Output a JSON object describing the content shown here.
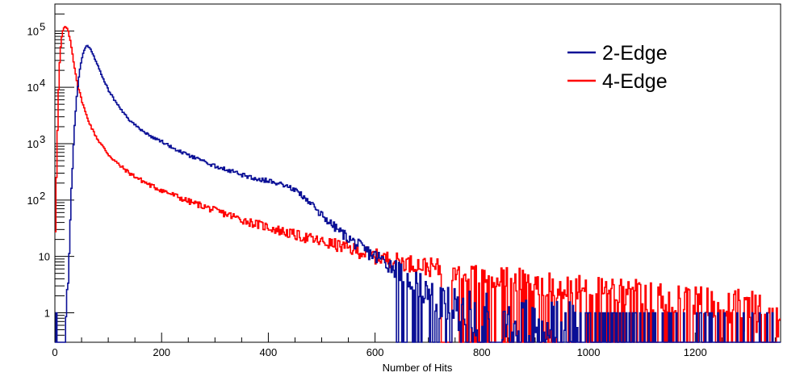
{
  "chart_data": {
    "type": "line",
    "title": "",
    "xlabel": "Number of Hits",
    "ylabel": "",
    "xlim": [
      0,
      1360
    ],
    "ylim": [
      0.3,
      300000
    ],
    "y_scale": "log",
    "grid": false,
    "legend_position": "top-right",
    "x_ticks": [
      {
        "value": 0,
        "label": "0"
      },
      {
        "value": 200,
        "label": "200"
      },
      {
        "value": 400,
        "label": "400"
      },
      {
        "value": 600,
        "label": "600"
      },
      {
        "value": 800,
        "label": "800"
      },
      {
        "value": 1000,
        "label": "1000"
      },
      {
        "value": 1200,
        "label": "1200"
      }
    ],
    "y_ticks": [
      {
        "value": 1,
        "label": "1"
      },
      {
        "value": 10,
        "label": "10"
      },
      {
        "value": 100,
        "label": "10",
        "sup": "2"
      },
      {
        "value": 1000,
        "label": "10",
        "sup": "3"
      },
      {
        "value": 10000,
        "label": "10",
        "sup": "4"
      },
      {
        "value": 100000,
        "label": "10",
        "sup": "5"
      }
    ],
    "series": [
      {
        "name": "2-Edge",
        "color": "#0a0f96",
        "x": [
          0,
          12,
          18,
          24,
          30,
          36,
          42,
          48,
          54,
          60,
          66,
          72,
          80,
          90,
          100,
          120,
          140,
          160,
          180,
          200,
          225,
          250,
          275,
          300,
          325,
          350,
          375,
          400,
          420,
          440,
          460,
          480,
          500,
          520,
          540,
          560,
          580,
          600,
          620,
          640,
          660,
          680,
          700,
          720,
          760,
          800,
          860,
          920,
          980,
          1040,
          1100,
          1160,
          1220,
          1290,
          1360
        ],
        "values": [
          0.3,
          0.3,
          0.3,
          1.5,
          100,
          1500,
          9000,
          25000,
          45000,
          56000,
          50000,
          38000,
          25000,
          15000,
          9000,
          4500,
          2600,
          1800,
          1350,
          1100,
          800,
          620,
          500,
          400,
          340,
          280,
          240,
          220,
          200,
          170,
          130,
          85,
          55,
          36,
          25,
          18,
          13,
          10,
          8,
          6,
          4.5,
          3.2,
          2.2,
          1.6,
          1.1,
          0.9,
          0.8,
          0.7,
          0.6,
          0.5,
          0.5,
          0.45,
          0.4,
          0.4,
          0.35
        ]
      },
      {
        "name": "4-Edge",
        "color": "#ff0000",
        "x": [
          0,
          4,
          8,
          12,
          16,
          20,
          24,
          28,
          32,
          36,
          42,
          50,
          60,
          70,
          80,
          100,
          120,
          140,
          160,
          180,
          200,
          225,
          250,
          275,
          300,
          325,
          350,
          375,
          400,
          425,
          450,
          475,
          500,
          525,
          550,
          575,
          600,
          650,
          700,
          750,
          800,
          850,
          900,
          950,
          1000,
          1050,
          1100,
          1150,
          1200,
          1250,
          1300,
          1360
        ],
        "values": [
          10,
          800,
          20000,
          70000,
          110000,
          120000,
          105000,
          75000,
          45000,
          25000,
          12000,
          6000,
          3000,
          1800,
          1200,
          650,
          420,
          300,
          230,
          180,
          150,
          120,
          95,
          80,
          65,
          55,
          45,
          38,
          33,
          28,
          24,
          21,
          18,
          16,
          14,
          12,
          10,
          8,
          6.5,
          5.5,
          4.5,
          4,
          3.5,
          3,
          2.7,
          2.4,
          2,
          1.8,
          1.5,
          1.2,
          1.0,
          0.9
        ]
      }
    ]
  }
}
